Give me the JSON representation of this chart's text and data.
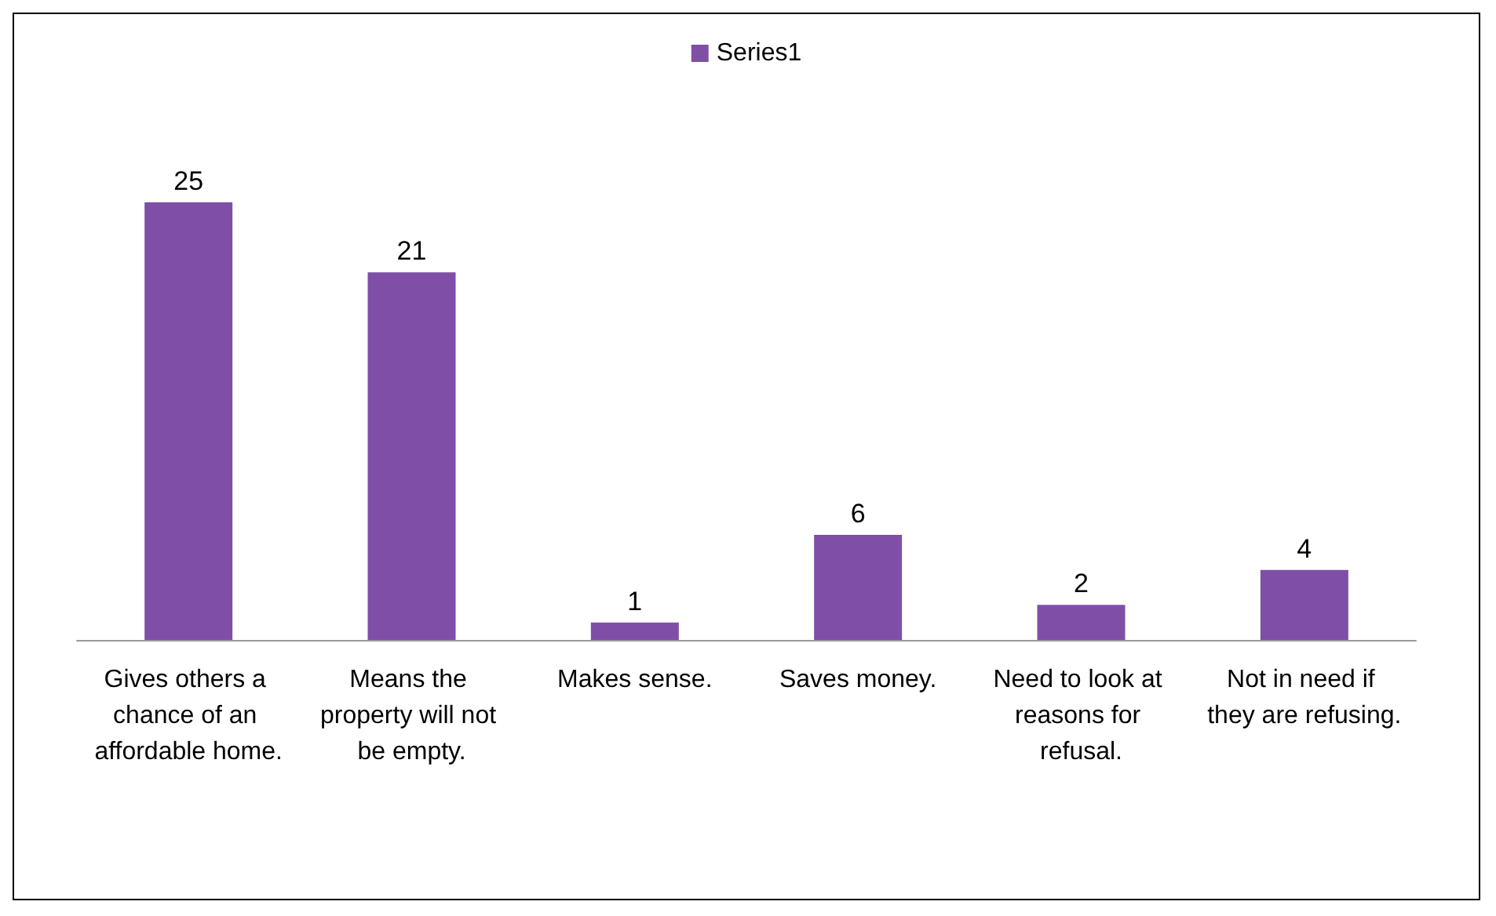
{
  "chart_data": {
    "type": "bar",
    "categories": [
      "Gives others a chance of an affordable home.",
      "Means the property will not be empty.",
      "Makes sense.",
      "Saves money.",
      "Need to look at reasons for refusal.",
      "Not in need if they are refusing."
    ],
    "series": [
      {
        "name": "Series1",
        "color": "#7f4fa8",
        "values": [
          25,
          21,
          1,
          6,
          2,
          4
        ]
      }
    ],
    "data_labels": true,
    "legend": "top",
    "grid": false
  }
}
